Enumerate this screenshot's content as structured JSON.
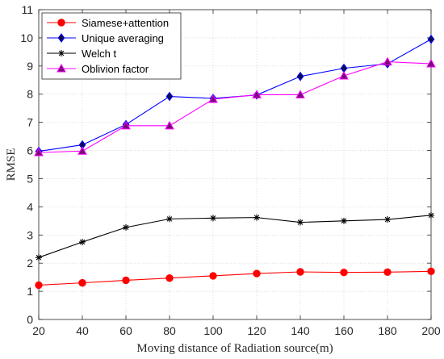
{
  "chart_data": {
    "type": "line",
    "xlabel": "Moving distance of Radiation source(m)",
    "ylabel": "RMSE",
    "xlim": [
      20,
      200
    ],
    "ylim": [
      0,
      11
    ],
    "x_ticks": [
      "20",
      "40",
      "60",
      "80",
      "100",
      "120",
      "140",
      "160",
      "180",
      "200"
    ],
    "y_ticks": [
      "0",
      "1",
      "2",
      "3",
      "4",
      "5",
      "6",
      "7",
      "8",
      "9",
      "10",
      "11"
    ],
    "grid": true,
    "legend_position": "top-left",
    "x": [
      20,
      40,
      60,
      80,
      100,
      120,
      140,
      160,
      180,
      200
    ],
    "series": [
      {
        "name": "Siamese+attention",
        "color": "#ff0000",
        "marker": "circle",
        "values": [
          1.22,
          1.3,
          1.39,
          1.47,
          1.55,
          1.63,
          1.69,
          1.67,
          1.68,
          1.71
        ]
      },
      {
        "name": "Unique averaging",
        "color": "#0000ff",
        "marker": "diamond",
        "values": [
          5.97,
          6.2,
          6.92,
          7.92,
          7.85,
          7.97,
          8.63,
          8.92,
          9.08,
          9.95
        ]
      },
      {
        "name": "Welch t",
        "color": "#000000",
        "marker": "asterisk",
        "values": [
          2.2,
          2.75,
          3.27,
          3.57,
          3.6,
          3.62,
          3.45,
          3.5,
          3.55,
          3.7
        ]
      },
      {
        "name": "Oblivion factor",
        "color": "#ff00ff",
        "marker": "triangle",
        "values": [
          5.93,
          5.98,
          6.88,
          6.88,
          7.82,
          7.98,
          7.98,
          8.65,
          9.15,
          9.08
        ]
      }
    ]
  }
}
